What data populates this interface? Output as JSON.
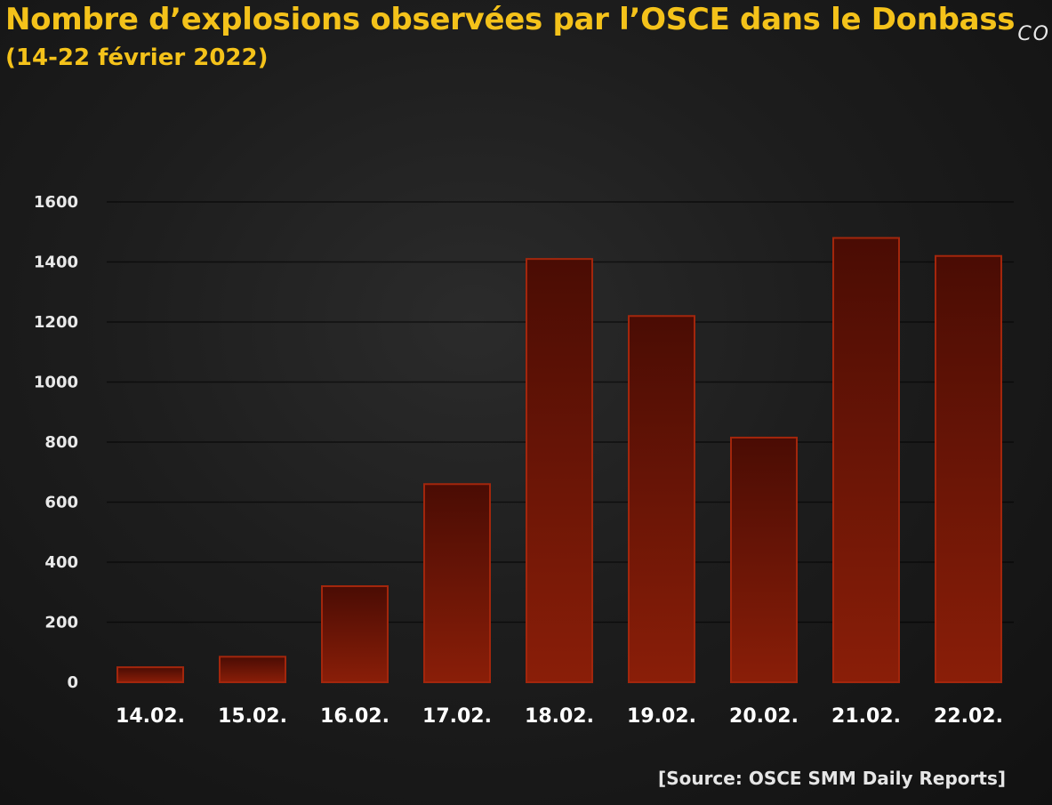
{
  "title": "Nombre d’explosions observées par l’OSCE dans le Donbass",
  "subtitle": "(14-22 février 2022)",
  "corner_text": "CO",
  "source": "[Source: OSCE SMM Daily Reports]",
  "colors": {
    "title": "#f4c21a",
    "bar_top": "#4a0c04",
    "bar_bottom": "#8a1e08",
    "bar_stroke": "#a3260c",
    "gridline": "#000000"
  },
  "chart_data": {
    "type": "bar",
    "title": "Nombre d’explosions observées par l’OSCE dans le Donbass",
    "subtitle": "(14-22 février 2022)",
    "categories": [
      "14.02.",
      "15.02.",
      "16.02.",
      "17.02.",
      "18.02.",
      "19.02.",
      "20.02.",
      "21.02.",
      "22.02."
    ],
    "values": [
      50,
      85,
      320,
      660,
      1410,
      1220,
      815,
      1480,
      1420
    ],
    "ylim": [
      0,
      1600
    ],
    "yticks": [
      0,
      200,
      400,
      600,
      800,
      1000,
      1200,
      1400,
      1600
    ],
    "xlabel": "",
    "ylabel": "",
    "grid": true,
    "legend": "none"
  }
}
